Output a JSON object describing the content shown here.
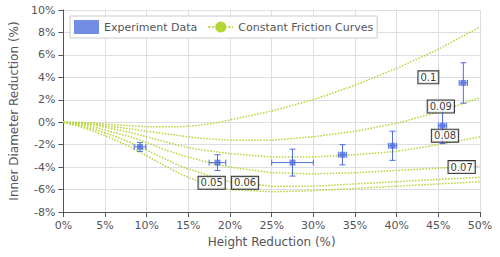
{
  "chart_data": {
    "type": "line",
    "xlabel": "Height Reduction (%)",
    "ylabel": "Inner Diameter Reduction (%)",
    "xlim": [
      0.0,
      0.5
    ],
    "ylim": [
      -0.08,
      0.1
    ],
    "xticks": [
      {
        "value": 0.0,
        "label": "0%"
      },
      {
        "value": 0.05,
        "label": "5%"
      },
      {
        "value": 0.1,
        "label": "10%"
      },
      {
        "value": 0.15,
        "label": "15%"
      },
      {
        "value": 0.2,
        "label": "20%"
      },
      {
        "value": 0.25,
        "label": "25%"
      },
      {
        "value": 0.3,
        "label": "30%"
      },
      {
        "value": 0.35,
        "label": "35%"
      },
      {
        "value": 0.4,
        "label": "40%"
      },
      {
        "value": 0.45,
        "label": "45%"
      },
      {
        "value": 0.5,
        "label": "50%"
      }
    ],
    "yticks": [
      {
        "value": -0.08,
        "label": "-8%"
      },
      {
        "value": -0.06,
        "label": "-6%"
      },
      {
        "value": -0.04,
        "label": "-4%"
      },
      {
        "value": -0.02,
        "label": "-2%"
      },
      {
        "value": 0.0,
        "label": "0%"
      },
      {
        "value": 0.02,
        "label": "2%"
      },
      {
        "value": 0.04,
        "label": "4%"
      },
      {
        "value": 0.06,
        "label": "6%"
      },
      {
        "value": 0.08,
        "label": "8%"
      },
      {
        "value": 0.1,
        "label": "10%"
      }
    ],
    "grid": true,
    "legend": "upper left",
    "series": [
      {
        "name": "Experiment Data",
        "type": "scatter",
        "marker": "square",
        "x": [
          0.092,
          0.185,
          0.275,
          0.335,
          0.395,
          0.455,
          0.48
        ],
        "values": [
          -0.022,
          -0.036,
          -0.036,
          -0.029,
          -0.021,
          -0.003,
          0.035
        ],
        "xerr": [
          0.007,
          0.01,
          0.025,
          0.005,
          0.005,
          0.005,
          0.005
        ],
        "yerr": [
          0.004,
          0.007,
          0.012,
          0.009,
          0.013,
          0.016,
          0.018
        ]
      },
      {
        "name": "Constant Friction Curves",
        "type": "line",
        "line_style": "dotted",
        "curves": [
          {
            "x": [
              0.0,
              0.02,
              0.04,
              0.06,
              0.08,
              0.1,
              0.12,
              0.14,
              0.16,
              0.18,
              0.2,
              0.25,
              0.3,
              0.35,
              0.4,
              0.45,
              0.5
            ],
            "values": [
              0.0,
              -0.004,
              -0.009,
              -0.015,
              -0.022,
              -0.03,
              -0.038,
              -0.046,
              -0.052,
              -0.057,
              -0.06,
              -0.062,
              -0.061,
              -0.059,
              -0.057,
              -0.055,
              -0.053
            ]
          },
          {
            "x": [
              0.0,
              0.02,
              0.04,
              0.06,
              0.08,
              0.1,
              0.12,
              0.14,
              0.16,
              0.18,
              0.2,
              0.25,
              0.3,
              0.35,
              0.4,
              0.45,
              0.5
            ],
            "values": [
              0.0,
              -0.003,
              -0.007,
              -0.012,
              -0.018,
              -0.025,
              -0.032,
              -0.039,
              -0.044,
              -0.049,
              -0.053,
              -0.057,
              -0.057,
              -0.055,
              -0.053,
              -0.051,
              -0.049
            ]
          },
          {
            "x": [
              0.0,
              0.02,
              0.04,
              0.06,
              0.08,
              0.1,
              0.12,
              0.14,
              0.16,
              0.18,
              0.2,
              0.25,
              0.3,
              0.35,
              0.4,
              0.45,
              0.5
            ],
            "values": [
              0.0,
              -0.002,
              -0.005,
              -0.009,
              -0.013,
              -0.018,
              -0.024,
              -0.029,
              -0.033,
              -0.037,
              -0.04,
              -0.045,
              -0.046,
              -0.045,
              -0.043,
              -0.041,
              -0.039
            ]
          },
          {
            "x": [
              0.0,
              0.02,
              0.04,
              0.06,
              0.08,
              0.1,
              0.12,
              0.14,
              0.16,
              0.18,
              0.2,
              0.25,
              0.3,
              0.35,
              0.4,
              0.45,
              0.5
            ],
            "values": [
              0.0,
              -0.001,
              -0.003,
              -0.006,
              -0.009,
              -0.013,
              -0.017,
              -0.021,
              -0.024,
              -0.026,
              -0.028,
              -0.031,
              -0.031,
              -0.029,
              -0.026,
              -0.02,
              -0.013
            ]
          },
          {
            "x": [
              0.0,
              0.02,
              0.04,
              0.06,
              0.08,
              0.1,
              0.12,
              0.14,
              0.16,
              0.18,
              0.2,
              0.25,
              0.3,
              0.35,
              0.4,
              0.45,
              0.5
            ],
            "values": [
              0.0,
              -0.001,
              -0.002,
              -0.004,
              -0.006,
              -0.008,
              -0.01,
              -0.012,
              -0.014,
              -0.015,
              -0.016,
              -0.016,
              -0.013,
              -0.008,
              -0.001,
              0.009,
              0.022
            ]
          },
          {
            "x": [
              0.0,
              0.02,
              0.04,
              0.06,
              0.08,
              0.1,
              0.12,
              0.14,
              0.16,
              0.18,
              0.2,
              0.25,
              0.3,
              0.35,
              0.4,
              0.45,
              0.5
            ],
            "values": [
              0.0,
              0.0,
              -0.001,
              -0.002,
              -0.003,
              -0.004,
              -0.004,
              -0.004,
              -0.003,
              -0.001,
              0.002,
              0.01,
              0.02,
              0.033,
              0.048,
              0.065,
              0.085
            ]
          }
        ]
      }
    ],
    "annotations": [
      {
        "text": "0.05",
        "x": 0.178,
        "y": -0.054
      },
      {
        "text": "0.06",
        "x": 0.218,
        "y": -0.054
      },
      {
        "text": "0.07",
        "x": 0.478,
        "y": -0.04
      },
      {
        "text": "0.08",
        "x": 0.458,
        "y": -0.012
      },
      {
        "text": "0.09",
        "x": 0.453,
        "y": 0.014
      },
      {
        "text": "0.1",
        "x": 0.438,
        "y": 0.04
      }
    ]
  }
}
